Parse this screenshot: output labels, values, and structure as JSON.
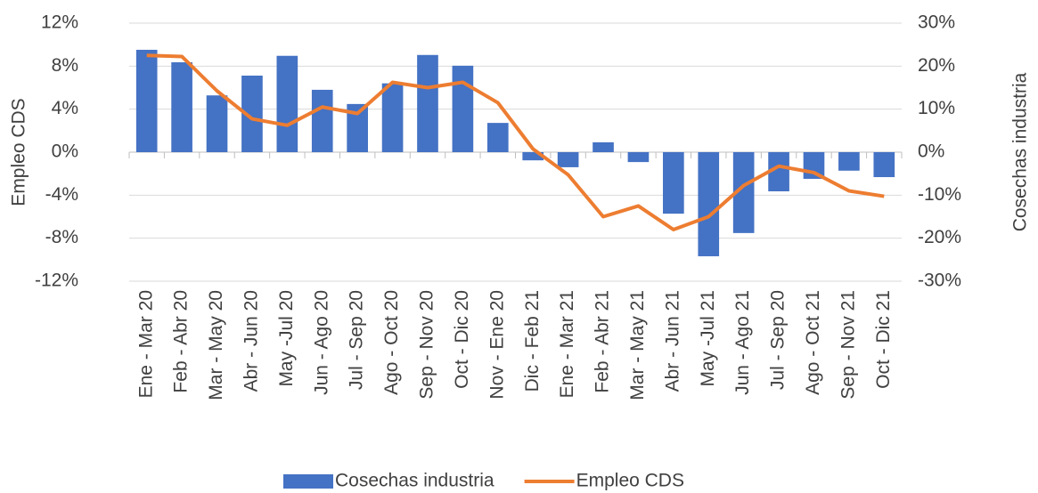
{
  "chart_data": {
    "type": "bar_line",
    "categories": [
      "Ene - Mar 20",
      "Feb - Abr 20",
      "Mar - May 20",
      "Abr - Jun 20",
      "May -Jul 20",
      "Jun - Ago 20",
      "Jul - Sep 20",
      "Ago - Oct 20",
      "Sep - Nov 20",
      "Oct - Dic 20",
      "Nov - Ene 20",
      "Dic - Feb 21",
      "Ene - Mar 21",
      "Feb - Abr 21",
      "Mar - May 21",
      "Abr - Jun 21",
      "May -Jul 21",
      "Jun - Ago 21",
      "Jul - Sep 20",
      "Ago - Oct 21",
      "Sep - Nov 21",
      "Oct - Dic 21"
    ],
    "series": [
      {
        "name": "Cosechas industria",
        "type": "bar",
        "axis": "y2",
        "color": "#4472c4",
        "values": [
          23.8,
          20.9,
          13.2,
          17.8,
          22.4,
          14.5,
          11.2,
          16,
          22.6,
          20.1,
          6.8,
          -1.9,
          -3.5,
          2.3,
          -2.3,
          -14.3,
          -24.2,
          -18.8,
          -9.1,
          -6.2,
          -4.3,
          -5.8
        ]
      },
      {
        "name": "Empleo CDS",
        "type": "line",
        "axis": "y",
        "color": "#ed7d31",
        "values": [
          9.0,
          8.9,
          5.7,
          3.1,
          2.5,
          4.2,
          3.6,
          6.5,
          6.0,
          6.5,
          4.6,
          0.3,
          -2.1,
          -6.0,
          -5.0,
          -7.2,
          -6.0,
          -3.1,
          -1.3,
          -1.9,
          -3.6,
          -4.1
        ]
      }
    ],
    "ylabel": "Empleo CDS",
    "y2label": "Cosechas industria",
    "ylim": [
      -12,
      12
    ],
    "yticks": [
      {
        "value": -12,
        "label": "-12%"
      },
      {
        "value": -8,
        "label": "-8%"
      },
      {
        "value": -4,
        "label": "-4%"
      },
      {
        "value": 0,
        "label": "0%"
      },
      {
        "value": 4,
        "label": "4%"
      },
      {
        "value": 8,
        "label": "8%"
      },
      {
        "value": 12,
        "label": "12%"
      }
    ],
    "y2lim": [
      -30,
      30
    ],
    "y2ticks": [
      {
        "value": -30,
        "label": "-30%"
      },
      {
        "value": -20,
        "label": "-20%"
      },
      {
        "value": -10,
        "label": "-10%"
      },
      {
        "value": 0,
        "label": "0%"
      },
      {
        "value": 10,
        "label": "10%"
      },
      {
        "value": 20,
        "label": "20%"
      },
      {
        "value": 30,
        "label": "30%"
      }
    ],
    "grid": true,
    "legend": "bottom"
  }
}
